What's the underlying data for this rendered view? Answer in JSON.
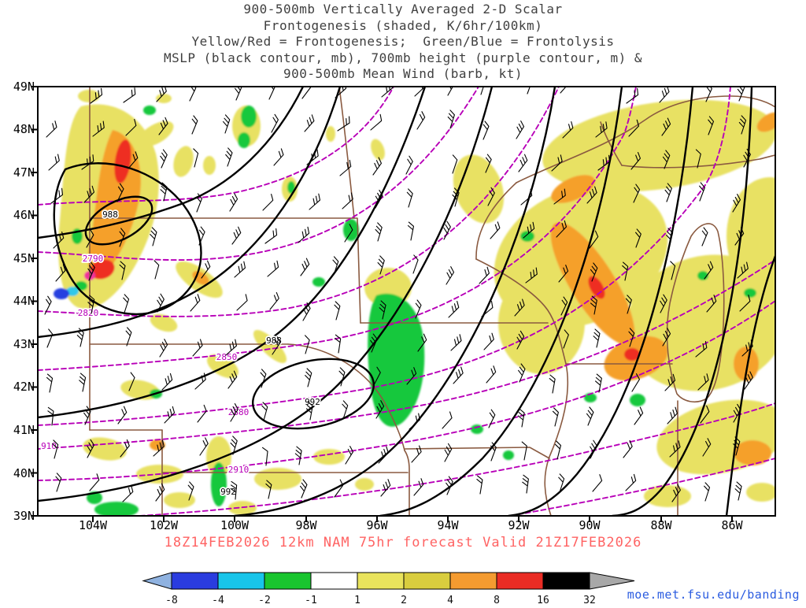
{
  "title": {
    "line1": "900-500mb Vertically Averaged 2-D Scalar",
    "line2": "Frontogenesis (shaded, K/6hr/100km)",
    "line3": "Yellow/Red = Frontogenesis;  Green/Blue = Frontolysis",
    "line4": "MSLP (black contour, mb), 700mb height (purple contour, m) &",
    "line5": "900-500mb Mean Wind (barb, kt)"
  },
  "map": {
    "lat_labels": [
      "49N",
      "48N",
      "47N",
      "46N",
      "45N",
      "44N",
      "43N",
      "42N",
      "41N",
      "40N",
      "39N"
    ],
    "lon_labels": [
      "104W",
      "102W",
      "100W",
      "98W",
      "96W",
      "94W",
      "92W",
      "90W",
      "88W",
      "86W"
    ],
    "mslp_contour_labels": [
      "988",
      "988",
      "992",
      "992"
    ],
    "height_contour_labels": [
      "2790",
      "2820",
      "2850",
      "2880",
      "2910",
      "910"
    ],
    "colors": {
      "mslp_contour": "#000000",
      "height_contour": "#b800b8",
      "state_border": "#8a5a40",
      "frontogenesis_yellow": "#e8e164",
      "frontogenesis_orange": "#f5a02c",
      "frontogenesis_red": "#ee2e24",
      "frontolysis_green": "#14c83c",
      "frontolysis_cyan": "#30c8e8",
      "frontolysis_blue": "#2840e0"
    }
  },
  "caption": {
    "text": "18Z14FEB2026 12km NAM 75hr forecast Valid 21Z17FEB2026"
  },
  "colorbar": {
    "labels": [
      "-8",
      "-4",
      "-2",
      "-1",
      "1",
      "2",
      "4",
      "8",
      "16",
      "32"
    ],
    "segment_colors": [
      "#2a3cdf",
      "#18c5ea",
      "#19c52f",
      "#ffffff",
      "#e9e35c",
      "#d9cd3e",
      "#f49b30",
      "#ea2c24",
      "#000000"
    ],
    "arrow_left_color": "#8fb2e0",
    "arrow_right_color": "#a8a8a8"
  },
  "credit": {
    "text": "moe.met.fsu.edu/banding"
  }
}
